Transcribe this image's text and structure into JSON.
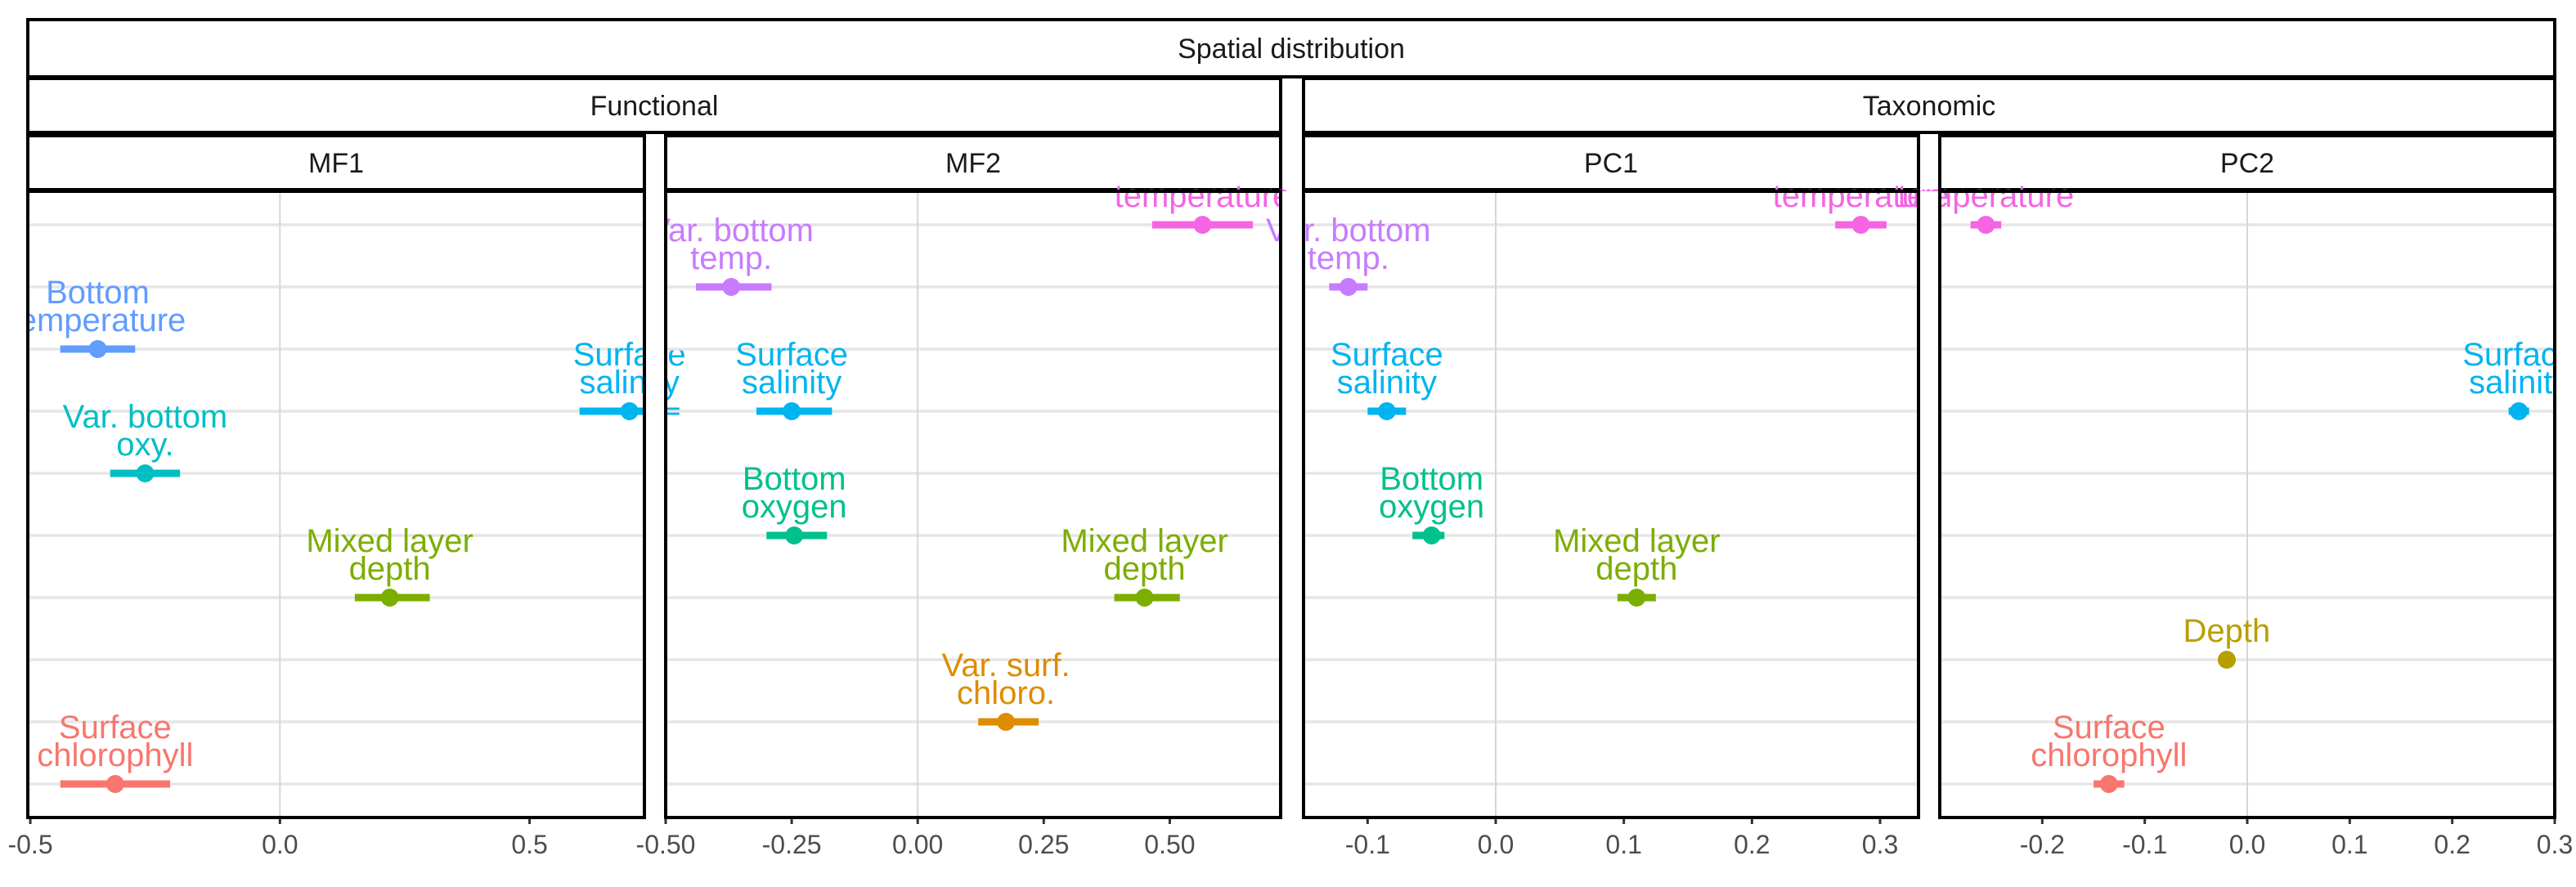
{
  "chart_data": {
    "type": "scatter",
    "title": "Spatial distribution",
    "groups": [
      "Functional",
      "Taxonomic"
    ],
    "panels": [
      {
        "name": "MF1",
        "group": "Functional",
        "xlim": [
          -0.505,
          0.73
        ],
        "ticks": [
          -0.5,
          0.0,
          0.5
        ],
        "tick_labels": [
          "-0.5",
          "0.0",
          "0.5"
        ],
        "points": [
          {
            "label": "Bottom temperature",
            "row": 3,
            "value": -0.365,
            "lo": -0.44,
            "hi": -0.29,
            "color": "#619CFF"
          },
          {
            "label": "Surface salinity",
            "row": 4,
            "value": 0.7,
            "lo": 0.6,
            "hi": 0.8,
            "color": "#00B4F0"
          },
          {
            "label": "Var. bottom oxy.",
            "row": 5,
            "value": -0.27,
            "lo": -0.34,
            "hi": -0.2,
            "color": "#00BFC4"
          },
          {
            "label": "Mixed layer depth",
            "row": 7,
            "value": 0.22,
            "lo": 0.15,
            "hi": 0.3,
            "color": "#7CAE00"
          },
          {
            "label": "Surface chlorophyll",
            "row": 10,
            "value": -0.33,
            "lo": -0.44,
            "hi": -0.22,
            "color": "#F8766D"
          }
        ]
      },
      {
        "name": "MF2",
        "group": "Functional",
        "xlim": [
          -0.5,
          0.72
        ],
        "ticks": [
          -0.5,
          -0.25,
          0.0,
          0.25,
          0.5
        ],
        "tick_labels": [
          "-0.50",
          "-0.25",
          "0.00",
          "0.25",
          "0.50"
        ],
        "points": [
          {
            "label": "temperature",
            "row": 1,
            "value": 0.565,
            "lo": 0.465,
            "hi": 0.665,
            "color": "#F564E3"
          },
          {
            "label": "Var. bottom temp.",
            "row": 2,
            "value": -0.37,
            "lo": -0.44,
            "hi": -0.29,
            "color": "#C77CFF"
          },
          {
            "label": "Surface salinity",
            "row": 4,
            "value": -0.25,
            "lo": -0.32,
            "hi": -0.17,
            "color": "#00B4F0"
          },
          {
            "label": "Bottom oxygen",
            "row": 6,
            "value": -0.245,
            "lo": -0.3,
            "hi": -0.18,
            "color": "#00C08B"
          },
          {
            "label": "Mixed layer depth",
            "row": 7,
            "value": 0.45,
            "lo": 0.39,
            "hi": 0.52,
            "color": "#7CAE00"
          },
          {
            "label": "Var. surf. chloro.",
            "row": 9,
            "value": 0.175,
            "lo": 0.12,
            "hi": 0.24,
            "color": "#DE8C00"
          }
        ]
      },
      {
        "name": "PC1",
        "group": "Taxonomic",
        "xlim": [
          -0.15,
          0.33
        ],
        "ticks": [
          -0.1,
          0.0,
          0.1,
          0.2,
          0.3
        ],
        "tick_labels": [
          "-0.1",
          "0.0",
          "0.1",
          "0.2",
          "0.3"
        ],
        "points": [
          {
            "label": "temperature",
            "row": 1,
            "value": 0.285,
            "lo": 0.265,
            "hi": 0.305,
            "color": "#F564E3"
          },
          {
            "label": "Var. bottom temp.",
            "row": 2,
            "value": -0.115,
            "lo": -0.13,
            "hi": -0.1,
            "color": "#C77CFF"
          },
          {
            "label": "Surface salinity",
            "row": 4,
            "value": -0.085,
            "lo": -0.1,
            "hi": -0.07,
            "color": "#00B4F0"
          },
          {
            "label": "Bottom oxygen",
            "row": 6,
            "value": -0.05,
            "lo": -0.065,
            "hi": -0.04,
            "color": "#00C08B"
          },
          {
            "label": "Mixed layer depth",
            "row": 7,
            "value": 0.11,
            "lo": 0.095,
            "hi": 0.125,
            "color": "#7CAE00"
          }
        ]
      },
      {
        "name": "PC2",
        "group": "Taxonomic",
        "xlim": [
          -0.3,
          0.3
        ],
        "ticks": [
          -0.2,
          -0.1,
          0.0,
          0.1,
          0.2,
          0.3
        ],
        "tick_labels": [
          "-0.2",
          "-0.1",
          "0.0",
          "0.1",
          "0.2",
          "0.3"
        ],
        "points": [
          {
            "label": "temperature",
            "row": 1,
            "value": -0.255,
            "lo": -0.27,
            "hi": -0.24,
            "color": "#F564E3"
          },
          {
            "label": "Surface salinity",
            "row": 4,
            "value": 0.265,
            "lo": 0.255,
            "hi": 0.275,
            "color": "#00B4F0"
          },
          {
            "label": "Depth",
            "row": 8,
            "value": -0.02,
            "lo": -0.02,
            "hi": -0.02,
            "color": "#B79F00"
          },
          {
            "label": "Surface chlorophyll",
            "row": 10,
            "value": -0.135,
            "lo": -0.15,
            "hi": -0.12,
            "color": "#F8766D"
          }
        ]
      }
    ]
  }
}
